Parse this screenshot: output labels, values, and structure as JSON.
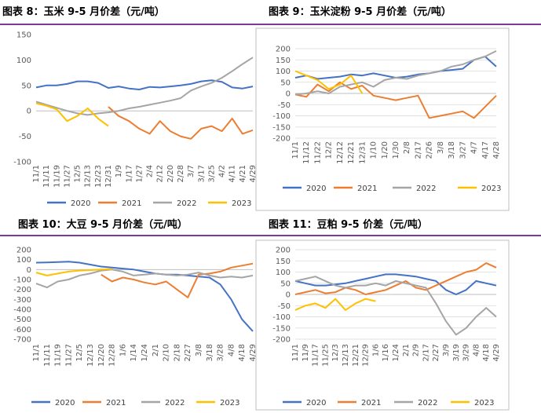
{
  "colors": {
    "s2020": "#4472C4",
    "s2021": "#ED7D31",
    "s2022": "#A5A5A5",
    "s2023": "#FFC000",
    "rule": "#7B3A96",
    "grid": "#D9D9D9"
  },
  "chart_data": [
    {
      "type": "line",
      "title": "图表 8：玉米 9-5 月价差（元/吨）",
      "ylim": [
        -100,
        150
      ],
      "yticks": [
        -100,
        -50,
        0,
        50,
        100,
        150
      ],
      "grid": false,
      "legend_position": "bottom",
      "categories": [
        "11/1",
        "11/11",
        "11/19",
        "11/27",
        "12/5",
        "12/13",
        "12/23",
        "12/31",
        "1/9",
        "1/17",
        "1/27",
        "2/4",
        "2/12",
        "2/20",
        "2/28",
        "3/7",
        "3/17",
        "3/25",
        "4/2",
        "4/11",
        "4/21",
        "4/29"
      ],
      "series": [
        {
          "name": "2020",
          "values": [
            46,
            50,
            50,
            53,
            58,
            58,
            55,
            45,
            48,
            44,
            42,
            47,
            46,
            48,
            50,
            53,
            58,
            60,
            57,
            46,
            44,
            48
          ]
        },
        {
          "name": "2021",
          "values": [
            null,
            null,
            null,
            null,
            null,
            null,
            null,
            8,
            -10,
            -20,
            -35,
            -45,
            -20,
            -40,
            -50,
            -55,
            -35,
            -30,
            -40,
            -15,
            -45,
            -38
          ]
        },
        {
          "name": "2022",
          "values": [
            18,
            12,
            6,
            0,
            -5,
            -8,
            -5,
            -3,
            0,
            5,
            8,
            12,
            16,
            20,
            25,
            40,
            48,
            55,
            65,
            78,
            92,
            105
          ]
        },
        {
          "name": "2023",
          "values": [
            15,
            10,
            3,
            -20,
            -10,
            5,
            -15,
            -30,
            null,
            null,
            null,
            null,
            null,
            null,
            null,
            null,
            null,
            null,
            null,
            null,
            null,
            null
          ]
        }
      ]
    },
    {
      "type": "line",
      "title": "图表 9：玉米淀粉 9-5 月价差（元/吨）",
      "ylim": [
        -200,
        200
      ],
      "yticks": [
        -200,
        -150,
        -100,
        -50,
        0,
        50,
        100,
        150,
        200
      ],
      "grid": true,
      "legend_position": "bottom",
      "categories": [
        "11/1",
        "11/12",
        "11/22",
        "12/2",
        "12/12",
        "12/21",
        "12/31",
        "1/10",
        "1/20",
        "1/30",
        "2/8",
        "2/17",
        "2/26",
        "3/8",
        "3/18",
        "3/27",
        "4/7",
        "4/17",
        "4/28"
      ],
      "series": [
        {
          "name": "2020",
          "values": [
            70,
            80,
            65,
            70,
            75,
            85,
            80,
            90,
            80,
            70,
            75,
            85,
            90,
            100,
            105,
            110,
            150,
            165,
            120
          ]
        },
        {
          "name": "2021",
          "values": [
            -5,
            -15,
            40,
            10,
            50,
            20,
            35,
            -10,
            -20,
            -30,
            -20,
            -10,
            -110,
            -100,
            -90,
            -80,
            -110,
            -60,
            -10
          ]
        },
        {
          "name": "2022",
          "values": [
            -5,
            0,
            10,
            0,
            30,
            40,
            50,
            30,
            60,
            70,
            65,
            80,
            90,
            100,
            120,
            130,
            150,
            165,
            190
          ]
        },
        {
          "name": "2023",
          "values": [
            100,
            80,
            60,
            20,
            40,
            80,
            0,
            null,
            null,
            null,
            null,
            null,
            null,
            null,
            null,
            null,
            null,
            null,
            null
          ]
        }
      ]
    },
    {
      "type": "line",
      "title": "图表 10：大豆 9-5 月价差（元/吨）",
      "ylim": [
        -700,
        200
      ],
      "yticks": [
        -700,
        -600,
        -500,
        -400,
        -300,
        -200,
        -100,
        0,
        100,
        200
      ],
      "grid": false,
      "legend_position": "bottom",
      "categories": [
        "11/1",
        "11/11",
        "11/19",
        "11/27",
        "12/5",
        "12/13",
        "12/20",
        "12/28",
        "1/6",
        "1/14",
        "1/24",
        "2/1",
        "2/10",
        "2/18",
        "2/27",
        "3/8",
        "3/18",
        "3/28",
        "4/8",
        "4/18",
        "4/29"
      ],
      "series": [
        {
          "name": "2020",
          "values": [
            70,
            72,
            75,
            80,
            70,
            50,
            30,
            20,
            10,
            0,
            -20,
            -40,
            -50,
            -50,
            -60,
            -70,
            -80,
            -150,
            -300,
            -500,
            -620
          ]
        },
        {
          "name": "2021",
          "values": [
            null,
            null,
            null,
            null,
            null,
            null,
            -50,
            -120,
            -80,
            -100,
            -130,
            -150,
            -120,
            -200,
            -280,
            -50,
            -40,
            -20,
            20,
            40,
            60
          ]
        },
        {
          "name": "2022",
          "values": [
            -140,
            -180,
            -120,
            -100,
            -60,
            -40,
            -10,
            0,
            -20,
            -60,
            -50,
            -40,
            -50,
            -60,
            -50,
            -30,
            -60,
            -80,
            -70,
            -80,
            -60
          ]
        },
        {
          "name": "2023",
          "values": [
            -30,
            -60,
            -40,
            -20,
            -10,
            -5,
            0,
            5,
            null,
            null,
            null,
            null,
            null,
            null,
            null,
            null,
            null,
            null,
            null,
            null,
            null
          ]
        }
      ]
    },
    {
      "type": "line",
      "title": "图表 11：豆粕 9-5 价差（元/吨）",
      "ylim": [
        -200,
        200
      ],
      "yticks": [
        -200,
        -150,
        -100,
        -50,
        0,
        50,
        100,
        150,
        200
      ],
      "grid": true,
      "legend_position": "bottom",
      "categories": [
        "11/1",
        "11/9",
        "11/17",
        "11/25",
        "12/3",
        "12/13",
        "12/21",
        "12/29",
        "1/6",
        "1/16",
        "1/24",
        "2/1",
        "2/9",
        "2/17",
        "2/27",
        "3/9",
        "3/19",
        "3/29",
        "4/8",
        "4/18",
        "4/29"
      ],
      "series": [
        {
          "name": "2020",
          "values": [
            60,
            50,
            40,
            40,
            45,
            50,
            60,
            70,
            80,
            90,
            90,
            85,
            80,
            70,
            60,
            20,
            0,
            20,
            60,
            50,
            40
          ]
        },
        {
          "name": "2021",
          "values": [
            0,
            10,
            20,
            5,
            10,
            30,
            20,
            0,
            10,
            20,
            40,
            60,
            30,
            20,
            40,
            60,
            80,
            100,
            110,
            140,
            120
          ]
        },
        {
          "name": "2022",
          "values": [
            60,
            70,
            80,
            60,
            40,
            30,
            40,
            40,
            50,
            40,
            60,
            50,
            40,
            30,
            -40,
            -120,
            -180,
            -150,
            -100,
            -60,
            -100
          ]
        },
        {
          "name": "2023",
          "values": [
            -70,
            -50,
            -40,
            -60,
            -20,
            -70,
            -40,
            -20,
            -30,
            null,
            null,
            null,
            null,
            null,
            null,
            null,
            null,
            null,
            null,
            null,
            null
          ]
        }
      ]
    }
  ]
}
